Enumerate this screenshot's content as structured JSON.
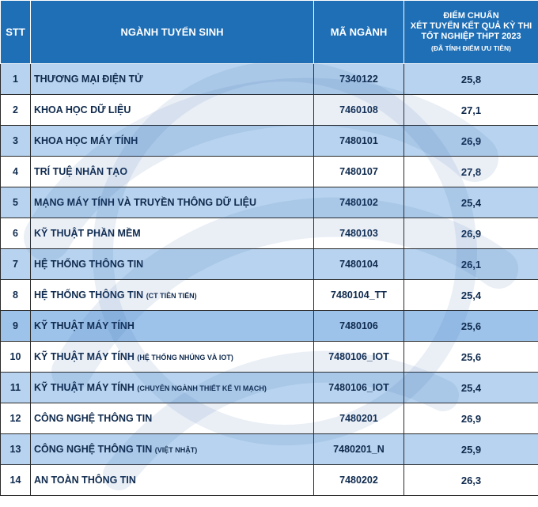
{
  "header": {
    "stt": "STT",
    "major": "NGÀNH TUYỂN SINH",
    "code": "MÃ NGÀNH",
    "score_line1": "ĐIỂM CHUẨN",
    "score_line2": "XÉT TUYỂN KẾT QUẢ KỲ THI",
    "score_line3": "TỐT NGHIỆP THPT 2023",
    "score_note": "(ĐÃ TÍNH ĐIỂM ƯU TIÊN)"
  },
  "rows": [
    {
      "stt": "1",
      "name": "THƯƠNG MẠI ĐIỆN TỬ",
      "note": "",
      "code": "7340122",
      "score": "25,8"
    },
    {
      "stt": "2",
      "name": "KHOA HỌC DỮ LIỆU",
      "note": "",
      "code": "7460108",
      "score": "27,1"
    },
    {
      "stt": "3",
      "name": "KHOA HỌC MÁY TÍNH",
      "note": "",
      "code": "7480101",
      "score": "26,9"
    },
    {
      "stt": "4",
      "name": "TRÍ TUỆ NHÂN TẠO",
      "note": "",
      "code": "7480107",
      "score": "27,8"
    },
    {
      "stt": "5",
      "name": "MẠNG MÁY TÍNH VÀ TRUYỀN THÔNG DỮ LIỆU",
      "note": "",
      "code": "7480102",
      "score": "25,4"
    },
    {
      "stt": "6",
      "name": "KỸ THUẬT PHẦN MỀM",
      "note": "",
      "code": "7480103",
      "score": "26,9"
    },
    {
      "stt": "7",
      "name": "HỆ THỐNG THÔNG TIN",
      "note": "",
      "code": "7480104",
      "score": "26,1"
    },
    {
      "stt": "8",
      "name": "HỆ THỐNG THÔNG TIN",
      "note": "(CT TIÊN TIẾN)",
      "code": "7480104_TT",
      "score": "25,4"
    },
    {
      "stt": "9",
      "name": "KỸ THUẬT MÁY TÍNH",
      "note": "",
      "code": "7480106",
      "score": "25,6"
    },
    {
      "stt": "10",
      "name": "KỸ THUẬT MÁY TÍNH",
      "note": "(HỆ THỐNG NHÚNG VÀ IOT)",
      "code": "7480106_IOT",
      "score": "25,6"
    },
    {
      "stt": "11",
      "name": "KỸ THUẬT MÁY TÍNH",
      "note": "(CHUYÊN NGÀNH THIẾT KẾ VI MẠCH)",
      "code": "7480106_IOT",
      "score": "25,4"
    },
    {
      "stt": "12",
      "name": "CÔNG NGHỆ THÔNG TIN",
      "note": "",
      "code": "7480201",
      "score": "26,9"
    },
    {
      "stt": "13",
      "name": "CÔNG NGHỆ THÔNG TIN",
      "note": "(VIỆT NHẬT)",
      "code": "7480201_N",
      "score": "25,9"
    },
    {
      "stt": "14",
      "name": "AN TOÀN THÔNG TIN",
      "note": "",
      "code": "7480202",
      "score": "26,3"
    }
  ],
  "colors": {
    "header_bg": "#1f6fb6",
    "row_odd": "#b7d3ef",
    "row_even": "#ffffff",
    "row_highlight": "#9ec3ea"
  },
  "watermark": "university-logo-watermark"
}
